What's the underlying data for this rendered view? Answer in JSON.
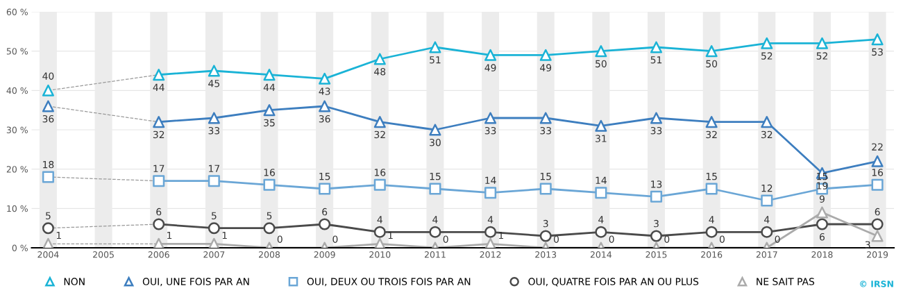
{
  "chart_data": {
    "type": "line",
    "categories": [
      "2004",
      "2005",
      "2006",
      "2007",
      "2008",
      "2009",
      "2010",
      "2011",
      "2012",
      "2013",
      "2014",
      "2015",
      "2016",
      "2017",
      "2018",
      "2019"
    ],
    "series": [
      {
        "name": "NON",
        "color": "#1ab3d6",
        "marker": "triangle",
        "values": [
          40,
          null,
          44,
          45,
          44,
          43,
          48,
          51,
          49,
          49,
          50,
          51,
          50,
          52,
          52,
          53
        ]
      },
      {
        "name": "OUI, UNE FOIS PAR AN",
        "color": "#3d7ebf",
        "marker": "triangle",
        "values": [
          36,
          null,
          32,
          33,
          35,
          36,
          32,
          30,
          33,
          33,
          31,
          33,
          32,
          32,
          19,
          22
        ]
      },
      {
        "name": "OUI, DEUX OU TROIS FOIS PAR AN",
        "color": "#6aa6d6",
        "marker": "square",
        "values": [
          18,
          null,
          17,
          17,
          16,
          15,
          16,
          15,
          14,
          15,
          14,
          13,
          15,
          12,
          15,
          16
        ]
      },
      {
        "name": "OUI, QUATRE FOIS PAR AN OU PLUS",
        "color": "#4a4a4a",
        "marker": "circle",
        "values": [
          5,
          null,
          6,
          5,
          5,
          6,
          4,
          4,
          4,
          3,
          4,
          3,
          4,
          4,
          6,
          6
        ]
      },
      {
        "name": "NE SAIT PAS",
        "color": "#aaaaaa",
        "marker": "triangle",
        "values": [
          1,
          null,
          1,
          1,
          0,
          0,
          1,
          0,
          1,
          0,
          0,
          0,
          0,
          0,
          9,
          3
        ]
      }
    ],
    "ylim": [
      0,
      60
    ],
    "yticks": [
      {
        "value": 0,
        "label": "0 %"
      },
      {
        "value": 10,
        "label": "10 %"
      },
      {
        "value": 20,
        "label": "20 %"
      },
      {
        "value": 30,
        "label": "30 %"
      },
      {
        "value": 40,
        "label": "40 %"
      },
      {
        "value": 50,
        "label": "50 %"
      },
      {
        "value": 60,
        "label": "60 %"
      }
    ],
    "grid": true,
    "legend": "bottom",
    "data_labels": true,
    "line_style": "solid",
    "annotations": [
      "© IRSN"
    ]
  }
}
